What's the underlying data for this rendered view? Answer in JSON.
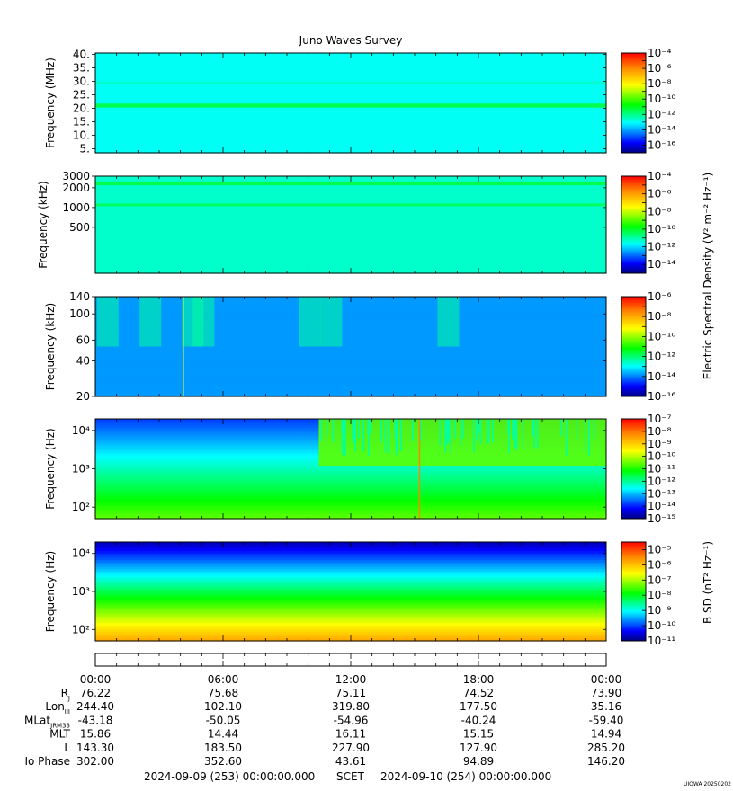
{
  "title": "Juno Waves Survey",
  "footer": {
    "start": "2024-09-09 (253) 00:00:00.000",
    "scet": "SCET",
    "end": "2024-09-10 (254) 00:00:00.000",
    "credit": "UIOWA 20250202"
  },
  "colorbar_titles": {
    "electric": "Electric Spectral Density (V² m⁻² Hz⁻¹)",
    "magnetic": "B SD (nT² Hz⁻¹)"
  },
  "time_ticks": [
    "00:00",
    "06:00",
    "12:00",
    "18:00",
    "00:00"
  ],
  "ephemeris": [
    {
      "label": "R",
      "sub": "J",
      "values": [
        "76.22",
        "75.68",
        "75.11",
        "74.52",
        "73.90"
      ]
    },
    {
      "label": "Lon",
      "sub": "III",
      "values": [
        "244.40",
        "102.10",
        "319.80",
        "177.50",
        "35.16"
      ]
    },
    {
      "label": "MLat",
      "sub": "JRM33",
      "values": [
        "-43.18",
        "-50.05",
        "-54.96",
        "-40.24",
        "-59.40"
      ]
    },
    {
      "label": "MLT",
      "sub": "",
      "values": [
        "15.86",
        "14.44",
        "16.11",
        "15.15",
        "14.94"
      ]
    },
    {
      "label": "L",
      "sub": "",
      "values": [
        "143.30",
        "183.50",
        "227.90",
        "127.90",
        "285.20"
      ]
    },
    {
      "label": "Io Phase",
      "sub": "",
      "values": [
        "302.00",
        "352.60",
        "43.61",
        "94.89",
        "146.20"
      ]
    }
  ],
  "chart_data": [
    {
      "type": "heatmap",
      "ylabel": "Frequency (MHz)",
      "yscale": "linear",
      "ylim": [
        3.5,
        40.5
      ],
      "yticks": [
        5,
        10,
        15,
        20,
        25,
        30,
        35,
        40
      ],
      "ytick_labels": [
        "5.",
        "10.",
        "15.",
        "20.",
        "25.",
        "30.",
        "35.",
        "40."
      ],
      "colorbar": {
        "scale": "log",
        "range_exp": [
          -17,
          -4
        ],
        "ticks_exp": [
          -16,
          -14,
          -12,
          -10,
          -8,
          -6,
          -4
        ]
      },
      "features": [
        {
          "kind": "background",
          "level_exp": -13
        },
        {
          "kind": "band",
          "freq": 21,
          "width": 1.5,
          "level_exp": -11.5
        },
        {
          "kind": "band",
          "freq": 29.5,
          "width": 0.8,
          "level_exp": -12.6
        }
      ]
    },
    {
      "type": "heatmap",
      "ylabel": "Frequency (kHz)",
      "yscale": "log",
      "ylim": [
        100,
        3000
      ],
      "yticks": [
        500,
        1000,
        2000,
        3000
      ],
      "ytick_labels": [
        "500",
        "1000",
        "2000",
        "3000"
      ],
      "colorbar": {
        "scale": "log",
        "range_exp": [
          -15,
          -4
        ],
        "ticks_exp": [
          -14,
          -12,
          -10,
          -8,
          -6,
          -4
        ]
      },
      "features": [
        {
          "kind": "background",
          "level_exp": -11.3
        },
        {
          "kind": "band",
          "freq": 2300,
          "width": 0.05,
          "level_exp": -10.3
        },
        {
          "kind": "band",
          "freq": 1100,
          "width": 0.05,
          "level_exp": -10.5
        }
      ]
    },
    {
      "type": "heatmap",
      "ylabel": "Frequency (kHz)",
      "yscale": "log",
      "ylim": [
        20,
        140
      ],
      "yticks": [
        20,
        40,
        60,
        100,
        140
      ],
      "ytick_labels": [
        "20",
        "40",
        "60",
        "100",
        "140"
      ],
      "colorbar": {
        "scale": "log",
        "range_exp": [
          -16,
          -6
        ],
        "ticks_exp": [
          -16,
          -14,
          -12,
          -10,
          -8,
          -6
        ]
      },
      "features": [
        {
          "kind": "background",
          "level_exp": -13.8
        },
        {
          "kind": "bursts",
          "hours": [
            0.5,
            2.5,
            4.5,
            5.0,
            10.0,
            11.0,
            16.5
          ],
          "level_exp": -12.3
        },
        {
          "kind": "spike",
          "hour": 4.1,
          "level_exp": -9.5
        }
      ]
    },
    {
      "type": "heatmap",
      "ylabel": "Frequency (Hz)",
      "yscale": "log",
      "ylim": [
        50,
        20000
      ],
      "yticks": [
        100,
        1000,
        10000
      ],
      "ytick_labels": [
        "10²",
        "10³",
        "10⁴"
      ],
      "colorbar": {
        "scale": "log",
        "range_exp": [
          -15,
          -7
        ],
        "ticks_exp": [
          -15,
          -14,
          -13,
          -12,
          -11,
          -10,
          -9,
          -8,
          -7
        ]
      },
      "features": [
        {
          "kind": "background_gradient",
          "level_exp_low": -10.6,
          "level_exp_high": -13.8
        },
        {
          "kind": "hiss",
          "start_hour": 10.5,
          "end_hour": 24,
          "freq_low": 1200,
          "freq_high": 20000,
          "level_exp": -10.6
        },
        {
          "kind": "spike",
          "hour": 15.2,
          "level_exp": -8.2
        }
      ]
    },
    {
      "type": "heatmap",
      "ylabel": "Frequency (Hz)",
      "yscale": "log",
      "ylim": [
        50,
        20000
      ],
      "yticks": [
        100,
        1000,
        10000
      ],
      "ytick_labels": [
        "10²",
        "10³",
        "10⁴"
      ],
      "colorbar": {
        "scale": "log",
        "range_exp": [
          -11,
          -4.5
        ],
        "ticks_exp": [
          -11,
          -10,
          -9,
          -8,
          -7,
          -6,
          -5
        ]
      },
      "features": [
        {
          "kind": "background_gradient",
          "level_exp_low": -5.8,
          "level_exp_high": -10.7
        }
      ]
    }
  ]
}
